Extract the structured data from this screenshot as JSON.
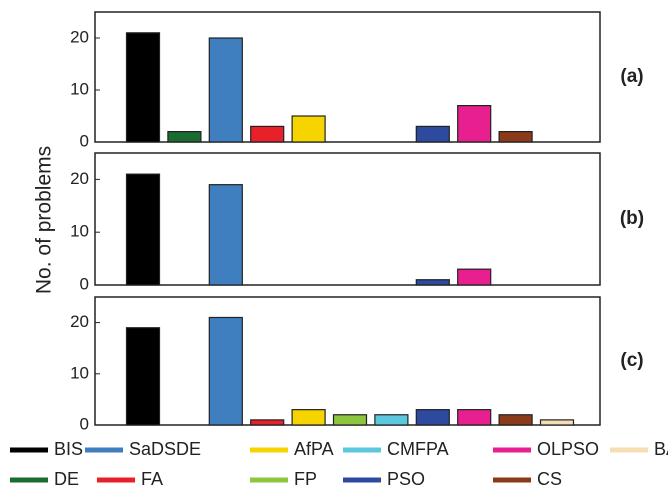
{
  "ylabel": "No. of problems",
  "legend": [
    {
      "name": "BIS",
      "color": "#000000"
    },
    {
      "name": "DE",
      "color": "#1a6b30"
    },
    {
      "name": "SaDSDE",
      "color": "#3f7fc0"
    },
    {
      "name": "FA",
      "color": "#e8202a"
    },
    {
      "name": "AfPA",
      "color": "#f5d400"
    },
    {
      "name": "FP",
      "color": "#8cc63f"
    },
    {
      "name": "CMFPA",
      "color": "#5bc8e0"
    },
    {
      "name": "PSO",
      "color": "#2e4a9e"
    },
    {
      "name": "OLPSO",
      "color": "#e8208f"
    },
    {
      "name": "CS",
      "color": "#8b3a1a"
    },
    {
      "name": "BA",
      "color": "#f5deb3"
    }
  ],
  "chart_data": [
    {
      "type": "bar",
      "label": "(a)",
      "values": [
        21,
        2,
        20,
        3,
        5,
        0,
        0,
        3,
        7,
        2,
        0
      ],
      "ylim": [
        0,
        25
      ],
      "yticks": [
        0,
        10,
        20
      ]
    },
    {
      "type": "bar",
      "label": "(b)",
      "values": [
        21,
        0,
        19,
        0,
        0,
        0,
        0,
        1,
        3,
        0,
        0
      ],
      "ylim": [
        0,
        25
      ],
      "yticks": [
        0,
        10,
        20
      ]
    },
    {
      "type": "bar",
      "label": "(c)",
      "values": [
        19,
        0,
        21,
        1,
        3,
        2,
        2,
        3,
        3,
        2,
        1
      ],
      "ylim": [
        0,
        25
      ],
      "yticks": [
        0,
        10,
        20
      ]
    }
  ]
}
